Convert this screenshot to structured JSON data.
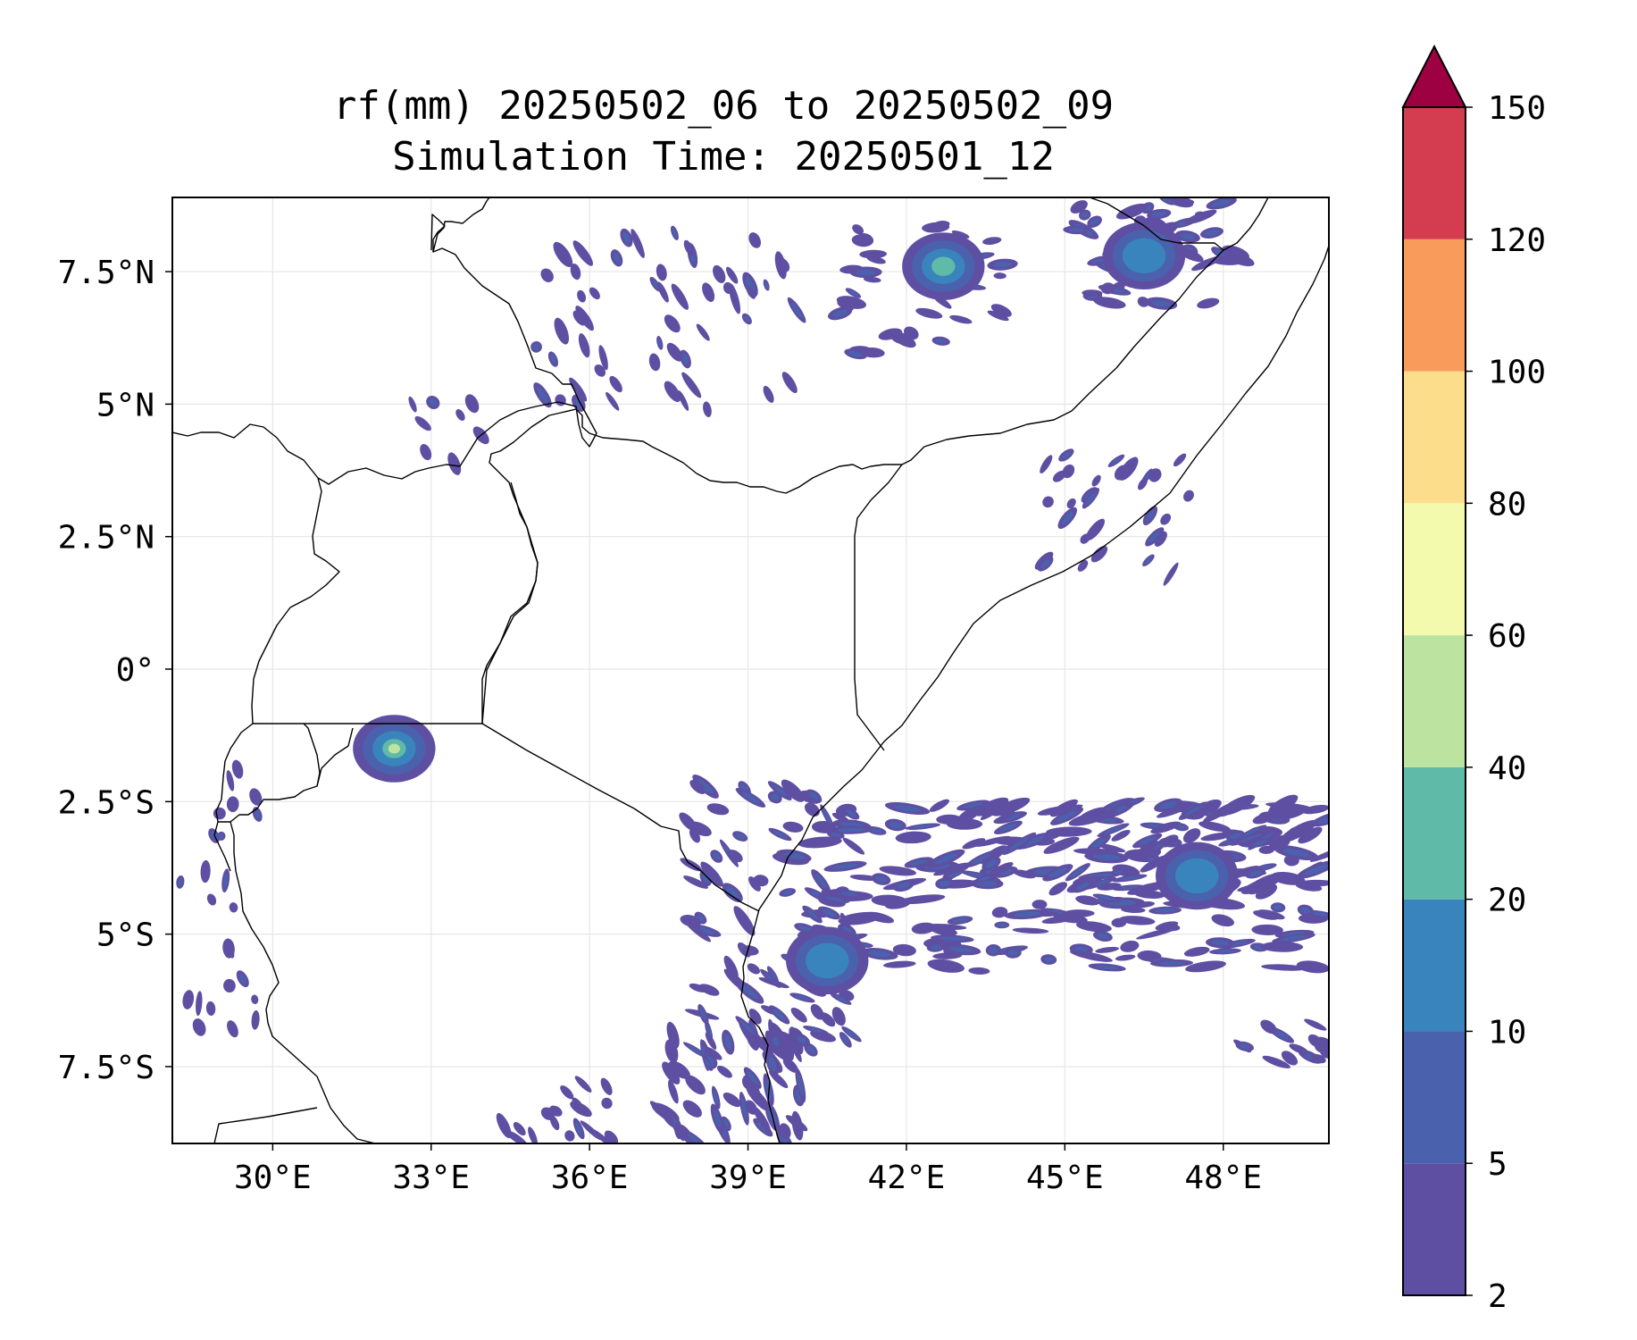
{
  "map": {
    "title_line1": "rf(mm) 20250502_06 to 20250502_09",
    "title_line2": "Simulation Time: 20250501_12",
    "extent": {
      "lon_min": 28.1,
      "lon_max": 50.0,
      "lat_min": -8.95,
      "lat_max": 8.9
    },
    "lon_ticks": [
      {
        "value": 30,
        "label": "30°E"
      },
      {
        "value": 33,
        "label": "33°E"
      },
      {
        "value": 36,
        "label": "36°E"
      },
      {
        "value": 39,
        "label": "39°E"
      },
      {
        "value": 42,
        "label": "42°E"
      },
      {
        "value": 45,
        "label": "45°E"
      },
      {
        "value": 48,
        "label": "48°E"
      }
    ],
    "lat_ticks": [
      {
        "value": 7.5,
        "label": "7.5°N"
      },
      {
        "value": 5,
        "label": "5°N"
      },
      {
        "value": 2.5,
        "label": "2.5°N"
      },
      {
        "value": 0,
        "label": "0°"
      },
      {
        "value": -2.5,
        "label": "2.5°S"
      },
      {
        "value": -5,
        "label": "5°S"
      },
      {
        "value": -7.5,
        "label": "7.5°S"
      }
    ],
    "rain_cells": [
      {
        "lon": 32.3,
        "lat": -1.5,
        "max": 45
      },
      {
        "lon": 42.7,
        "lat": 7.6,
        "max": 30
      },
      {
        "lon": 46.5,
        "lat": 7.8,
        "max": 18
      },
      {
        "lon": 40.5,
        "lat": -5.5,
        "max": 16
      },
      {
        "lon": 47.5,
        "lat": -3.9,
        "max": 14
      }
    ]
  },
  "colorbar": {
    "levels": [
      2,
      5,
      10,
      20,
      40,
      60,
      80,
      100,
      120,
      150
    ],
    "labels": [
      "2",
      "5",
      "10",
      "20",
      "40",
      "60",
      "80",
      "100",
      "120",
      "150"
    ],
    "colors": [
      "#5e4fa2",
      "#4a62ad",
      "#3984bc",
      "#5fbaa8",
      "#bce4a0",
      "#f4faad",
      "#fbdd8c",
      "#f99c5b",
      "#d43d4f"
    ],
    "extend_color": "#9e0142",
    "extend": "max"
  }
}
